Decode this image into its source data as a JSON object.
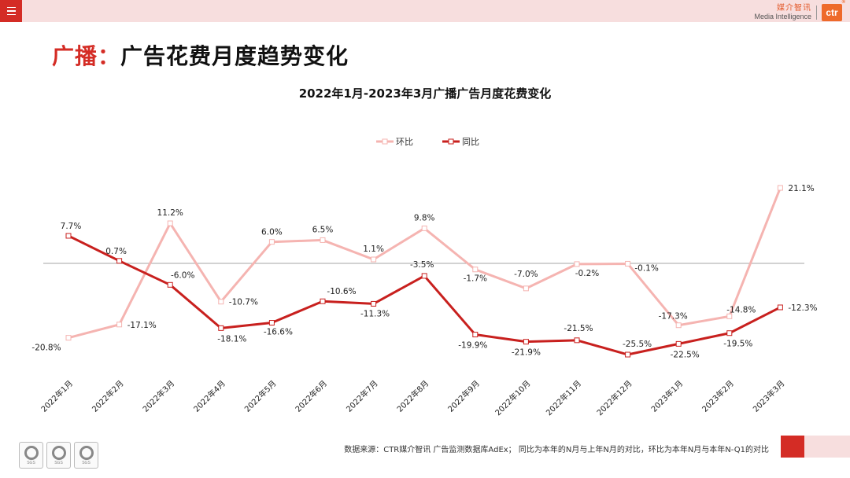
{
  "header": {
    "brand_cn": "媒介智讯",
    "brand_en": "Media Intelligence",
    "logo_text": "ctr",
    "logo_reg": "®"
  },
  "page": {
    "title_accent": "广播：",
    "title_rest": "广告花费月度趋势变化"
  },
  "chart_data": {
    "type": "line",
    "title": "2022年1月-2023年3月广播广告月度花费变化",
    "categories": [
      "2022年1月",
      "2022年2月",
      "2022年3月",
      "2022年4月",
      "2022年5月",
      "2022年6月",
      "2022年7月",
      "2022年8月",
      "2022年9月",
      "2022年10月",
      "2022年11月",
      "2022年12月",
      "2023年1月",
      "2023年2月",
      "2023年3月"
    ],
    "series": [
      {
        "name": "环比",
        "color": "#f5b4b1",
        "values": [
          -20.8,
          -17.1,
          11.2,
          -10.7,
          6.0,
          6.5,
          1.1,
          9.8,
          -1.7,
          -7.0,
          -0.2,
          -0.1,
          -17.3,
          -14.8,
          21.1
        ],
        "labels": [
          "-20.8%",
          "-17.1%",
          "11.2%",
          "-10.7%",
          "6.0%",
          "6.5%",
          "1.1%",
          "9.8%",
          "-1.7%",
          "-7.0%",
          "-0.2%",
          "-0.1%",
          "-17.3%",
          "-14.8%",
          "21.1%"
        ]
      },
      {
        "name": "同比",
        "color": "#c8201e",
        "values": [
          7.7,
          0.7,
          -6.0,
          -18.1,
          -16.6,
          -10.6,
          -11.3,
          -3.5,
          -19.9,
          -21.9,
          -21.5,
          -25.5,
          -22.5,
          -19.5,
          -12.3
        ],
        "labels": [
          "7.7%",
          "0.7%",
          "-6.0%",
          "-18.1%",
          "-16.6%",
          "-10.6%",
          "-11.3%",
          "-3.5%",
          "-19.9%",
          "-21.9%",
          "-21.5%",
          "-25.5%",
          "-22.5%",
          "-19.5%",
          "-12.3%"
        ]
      }
    ],
    "legend_position": "top-center",
    "grid": false
  },
  "footer": {
    "note": "数据来源：CTR媒介智讯 广告监测数据库AdEx； 同比为本年的N月与上年N月的对比，环比为本年N月与本年N-Q1的对比",
    "cert_text": "SGS"
  }
}
